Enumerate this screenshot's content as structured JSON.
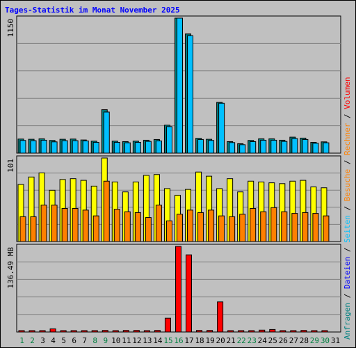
{
  "chart_data": {
    "type": "bar",
    "title": "Tages-Statistik im Monat November 2025",
    "days": [
      "1",
      "2",
      "3",
      "4",
      "5",
      "6",
      "7",
      "8",
      "9",
      "10",
      "11",
      "12",
      "13",
      "14",
      "15",
      "16",
      "17",
      "18",
      "19",
      "20",
      "21",
      "22",
      "23",
      "24",
      "25",
      "26",
      "27",
      "28",
      "29",
      "30",
      "31"
    ],
    "weekend_days": [
      "1",
      "2",
      "8",
      "9",
      "15",
      "16",
      "22",
      "23",
      "29",
      "30"
    ],
    "colors": {
      "weekday_label": "#000000",
      "weekend_label": "#008040",
      "hits": "#008080",
      "files": "#00c0ff",
      "pages": "#ff8000",
      "visits": "#ffff00",
      "kbytes": "#ff0000",
      "title": "#0000ff",
      "panel_bg": "#c0c0c0"
    },
    "panels": [
      {
        "ymax_label": "1150",
        "ymax": 1150,
        "series": [
          {
            "name": "hits",
            "values": [
              120,
              118,
              122,
              108,
              118,
              120,
              112,
              102,
              370,
              102,
              98,
              102,
              110,
              116,
              238,
              1150,
              1015,
              126,
              118,
              432,
              98,
              80,
              108,
              122,
              122,
              110,
              136,
              128,
              92,
              96,
              0
            ]
          },
          {
            "name": "files",
            "values": [
              108,
              106,
              110,
              96,
              106,
              106,
              104,
              92,
              350,
              92,
              88,
              92,
              100,
              104,
              226,
              1150,
              1000,
              116,
              108,
              425,
              90,
              72,
              98,
              110,
              110,
              100,
              124,
              116,
              84,
              88,
              0
            ]
          }
        ]
      },
      {
        "ymax_label": "101",
        "ymax": 101,
        "series": [
          {
            "name": "visits",
            "values": [
              69,
              78,
              83,
              62,
              75,
              76,
              74,
              67,
              101,
              72,
              60,
              72,
              80,
              81,
              64,
              56,
              63,
              84,
              79,
              64,
              76,
              60,
              73,
              72,
              71,
              70,
              73,
              74,
              66,
              65,
              0
            ]
          },
          {
            "name": "pages",
            "values": [
              30,
              30,
              44,
              44,
              40,
              40,
              38,
              31,
              73,
              39,
              36,
              35,
              29,
              44,
              25,
              33,
              38,
              35,
              38,
              31,
              30,
              33,
              40,
              36,
              41,
              36,
              34,
              35,
              34,
              31,
              0
            ]
          }
        ]
      },
      {
        "ymax_label": "136.49 MB",
        "ymax": 136.49,
        "series": [
          {
            "name": "kbytes",
            "values": [
              1.5,
              1.5,
              1.5,
              5,
              1.5,
              1.5,
              1.5,
              1.5,
              2.5,
              1.5,
              2.5,
              2.5,
              1.5,
              2.5,
              22,
              136.49,
              123,
              2.5,
              2.5,
              48,
              1.5,
              1.5,
              1.5,
              3,
              4,
              2,
              1.5,
              2.5,
              1.5,
              1.5,
              0
            ]
          }
        ]
      }
    ],
    "legend": [
      {
        "text": "Anfragen",
        "color": "#008080"
      },
      {
        "text": "/",
        "color": "#000000"
      },
      {
        "text": "Dateien",
        "color": "#0000ff"
      },
      {
        "text": "/",
        "color": "#000000"
      },
      {
        "text": "Seiten",
        "color": "#00c0ff"
      },
      {
        "text": "/",
        "color": "#000000"
      },
      {
        "text": "Besuche",
        "color": "#ff8000"
      },
      {
        "text": "/",
        "color": "#000000"
      },
      {
        "text": "Rechner",
        "color": "#ff8000"
      },
      {
        "text": "/",
        "color": "#000000"
      },
      {
        "text": "Volumen",
        "color": "#ff0000"
      }
    ]
  }
}
